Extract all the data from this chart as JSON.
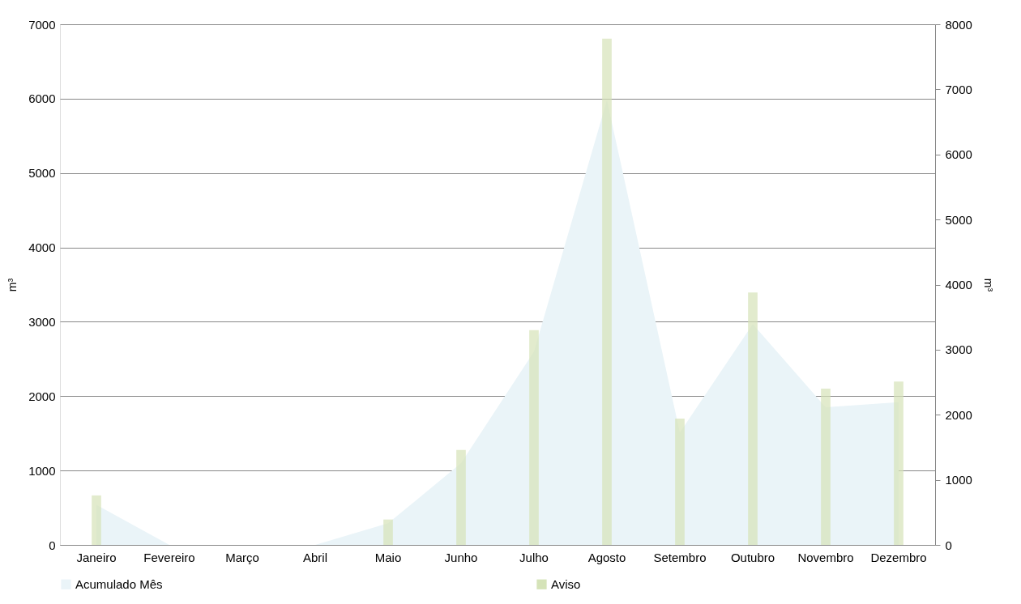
{
  "chart_data": {
    "type": "bar",
    "categories": [
      "Janeiro",
      "Fevereiro",
      "Março",
      "Abril",
      "Maio",
      "Junho",
      "Julho",
      "Agosto",
      "Setembro",
      "Outubro",
      "Novembro",
      "Dezembro"
    ],
    "series": [
      {
        "name": "Acumulado Mês",
        "type": "area",
        "color": "#eaf4f8",
        "values": [
          540,
          0,
          0,
          0,
          290,
          1100,
          2600,
          5980,
          1510,
          2970,
          1850,
          1920
        ]
      },
      {
        "name": "Aviso",
        "axis": "y2",
        "color": "#d5e3b8",
        "values": [
          760,
          null,
          null,
          null,
          390,
          1460,
          3300,
          7780,
          1940,
          3880,
          2400,
          2510
        ]
      }
    ],
    "ylabel": "m³",
    "y2label": "m³",
    "ylim": [
      0,
      7000
    ],
    "yticks": [
      0,
      1000,
      2000,
      3000,
      4000,
      5000,
      6000,
      7000
    ],
    "y2lim": [
      0,
      8000
    ],
    "y2ticks": [
      0,
      1000,
      2000,
      3000,
      4000,
      5000,
      6000,
      7000,
      8000
    ],
    "grid": "y",
    "legend": "bottom"
  }
}
